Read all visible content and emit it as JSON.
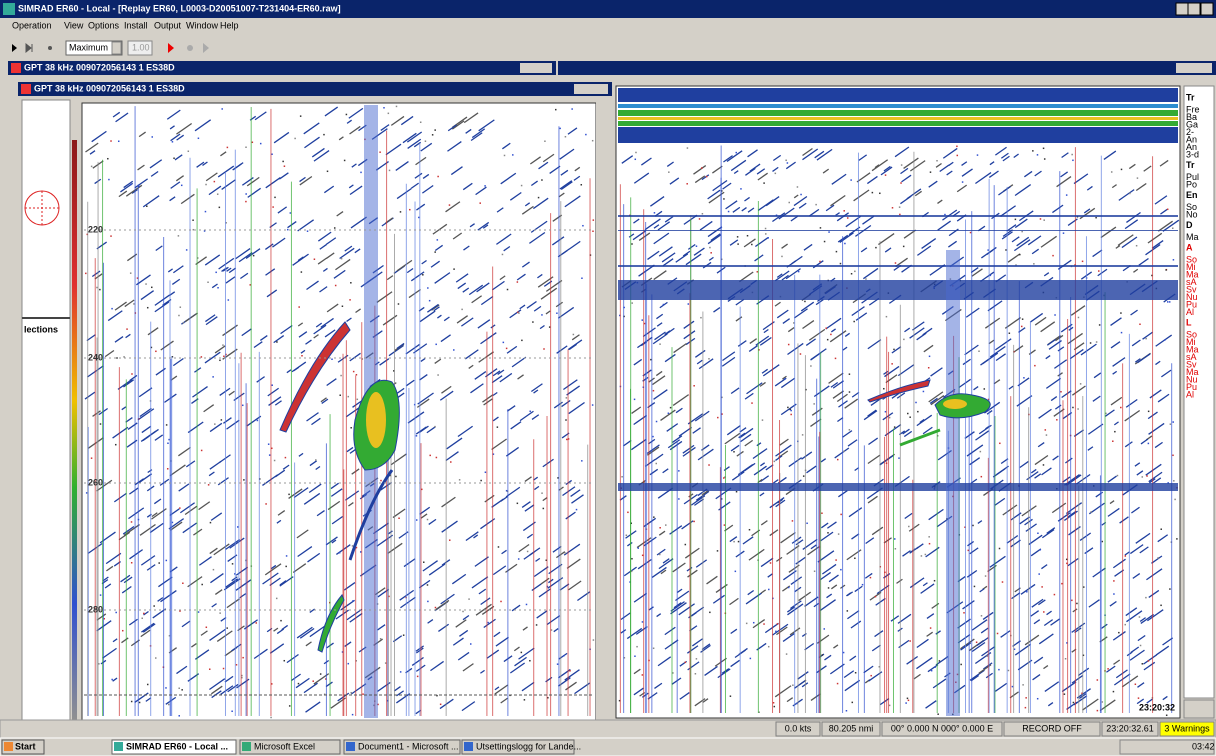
{
  "window": {
    "title": "SIMRAD ER60 - Local - [Replay ER60, L0003-D20051007-T231404-ER60.raw]"
  },
  "menu": [
    "Operation",
    "View",
    "Options",
    "Install",
    "Output",
    "Window",
    "Help"
  ],
  "toolbar": {
    "mode": "Maximum",
    "speed": "1.00"
  },
  "outer_child": {
    "title": "GPT  38 kHz 009072056143 1 ES38D"
  },
  "inner_child": {
    "title": "GPT  38 kHz 009072056143 1 ES38D",
    "panel_label": "lections",
    "depth_labels": [
      "220",
      "240",
      "260",
      "280"
    ]
  },
  "right_echogram": {
    "time": "23:20:32",
    "side_panel": [
      {
        "heading": "Tr",
        "color": "#000000",
        "lines": [
          "Fre",
          "Ba",
          "Ga",
          "2-",
          "An",
          "An",
          "3-d"
        ]
      },
      {
        "heading": "Tr",
        "color": "#000000",
        "lines": [
          "Pul",
          "Po"
        ]
      },
      {
        "heading": "En",
        "color": "#000000",
        "lines": [
          "So",
          "No"
        ]
      },
      {
        "heading": "D",
        "color": "#000000",
        "lines": [
          "Ma"
        ]
      },
      {
        "heading": "A",
        "color": "#e00000",
        "lines": [
          "So",
          "Mi",
          "Ma",
          "sA",
          "Sv",
          "Nu",
          "Pu",
          "Al"
        ]
      },
      {
        "heading": "L",
        "color": "#e00000",
        "lines": [
          "So",
          "Mi",
          "Ma",
          "sA",
          "Sv",
          "Ma",
          "Nu",
          "Pu",
          "Al"
        ]
      }
    ]
  },
  "status_bar": [
    "0.0 kts",
    "80.205 nmi",
    "00° 0.000 N  000° 0.000 E",
    "RECORD OFF",
    "23:20:32.61",
    "3 Warnings"
  ],
  "taskbar": {
    "start": "Start",
    "items": [
      "SIMRAD ER60 - Local ...",
      "Microsoft Excel",
      "Document1 - Microsoft ...",
      "Utsettingslogg for Lande..."
    ],
    "clock": "03:42"
  }
}
